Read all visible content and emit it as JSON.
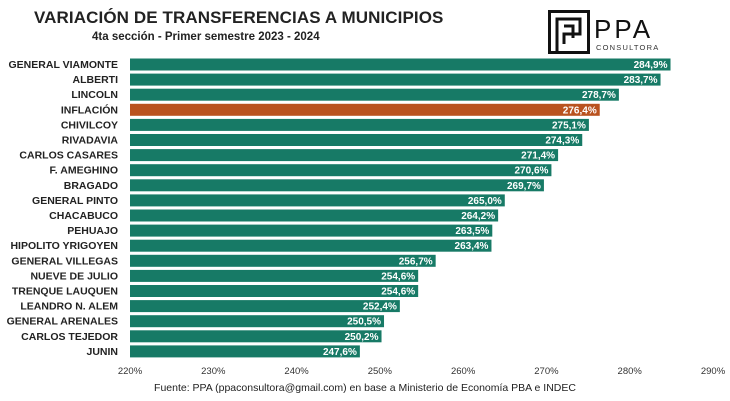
{
  "header": {
    "title": "VARIACIÓN DE TRANSFERENCIAS A MUNICIPIOS",
    "subtitle": "4ta sección -  Primer semestre 2023 - 2024"
  },
  "logo": {
    "name": "PPA",
    "tagline": "CONSULTORA"
  },
  "footer": {
    "source": "Fuente: PPA (ppaconsultora@gmail.com) en base a Ministerio de Economía PBA e INDEC"
  },
  "colors": {
    "bar": "#177a66",
    "highlight": "#b9521f",
    "label": "#ffffff"
  },
  "chart_data": {
    "type": "bar",
    "orientation": "horizontal",
    "title": "VARIACIÓN DE TRANSFERENCIAS A MUNICIPIOS",
    "subtitle": "4ta sección -  Primer semestre 2023 - 2024",
    "xlabel": "",
    "ylabel": "",
    "xlim": [
      220,
      290
    ],
    "xticks": [
      "220%",
      "230%",
      "240%",
      "250%",
      "260%",
      "270%",
      "280%",
      "290%"
    ],
    "grid": false,
    "highlight_category": "INFLACIÓN",
    "categories": [
      "GENERAL VIAMONTE",
      "ALBERTI",
      "LINCOLN",
      "INFLACIÓN",
      "CHIVILCOY",
      "RIVADAVIA",
      "CARLOS CASARES",
      "F. AMEGHINO",
      "BRAGADO",
      "GENERAL PINTO",
      "CHACABUCO",
      "PEHUAJO",
      "HIPOLITO YRIGOYEN",
      "GENERAL VILLEGAS",
      "NUEVE DE JULIO",
      "TRENQUE LAUQUEN",
      "LEANDRO N. ALEM",
      "GENERAL ARENALES",
      "CARLOS TEJEDOR",
      "JUNIN"
    ],
    "values": [
      284.9,
      283.7,
      278.7,
      276.4,
      275.1,
      274.3,
      271.4,
      270.6,
      269.7,
      265.0,
      264.2,
      263.5,
      263.4,
      256.7,
      254.6,
      254.6,
      252.4,
      250.5,
      250.2,
      247.6
    ],
    "value_labels": [
      "284,9%",
      "283,7%",
      "278,7%",
      "276,4%",
      "275,1%",
      "274,3%",
      "271,4%",
      "270,6%",
      "269,7%",
      "265,0%",
      "264,2%",
      "263,5%",
      "263,4%",
      "256,7%",
      "254,6%",
      "254,6%",
      "252,4%",
      "250,5%",
      "250,2%",
      "247,6%"
    ]
  }
}
